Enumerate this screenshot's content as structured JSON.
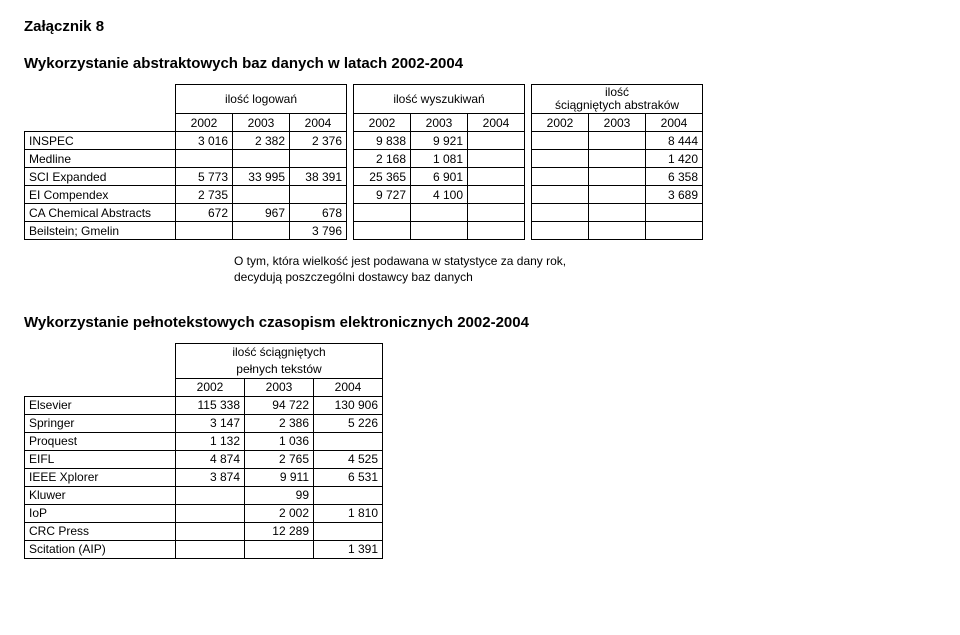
{
  "attachment_label": "Załącznik 8",
  "title1": "Wykorzystanie abstraktowych baz danych w latach 2002-2004",
  "table1": {
    "group_labels": [
      "ilość logowań",
      "ilość wyszukiwań",
      "ilość\nściągniętych abstraków"
    ],
    "year_labels": [
      "2002",
      "2003",
      "2004",
      "2002",
      "2003",
      "2004",
      "2002",
      "2003",
      "2004"
    ],
    "rows": [
      {
        "label": "INSPEC",
        "cells": [
          "3 016",
          "2 382",
          "2 376",
          "9 838",
          "9 921",
          "",
          "",
          "",
          "8 444"
        ]
      },
      {
        "label": "Medline",
        "cells": [
          "",
          "",
          "",
          "2 168",
          "1 081",
          "",
          "",
          "",
          "1 420"
        ]
      },
      {
        "label": "SCI Expanded",
        "cells": [
          "5 773",
          "33 995",
          "38 391",
          "25 365",
          "6 901",
          "",
          "",
          "",
          "6 358"
        ]
      },
      {
        "label": "EI Compendex",
        "cells": [
          "2 735",
          "",
          "",
          "9 727",
          "4 100",
          "",
          "",
          "",
          "3 689"
        ]
      },
      {
        "label": "CA Chemical Abstracts",
        "cells": [
          "672",
          "967",
          "678",
          "",
          "",
          "",
          "",
          "",
          ""
        ]
      },
      {
        "label": "Beilstein; Gmelin",
        "cells": [
          "",
          "",
          "3 796",
          "",
          "",
          "",
          "",
          "",
          ""
        ]
      }
    ]
  },
  "note_line1": "O tym, która wielkość jest podawana w statystyce za dany rok,",
  "note_line2": "decydują poszczególni dostawcy baz danych",
  "title2": "Wykorzystanie pełnotekstowych czasopism elektronicznych 2002-2004",
  "table2": {
    "header_line1": "ilość ściągniętych",
    "header_line2": "pełnych tekstów",
    "year_labels": [
      "2002",
      "2003",
      "2004"
    ],
    "rows": [
      {
        "label": "Elsevier",
        "cells": [
          "115 338",
          "94 722",
          "130 906"
        ]
      },
      {
        "label": "Springer",
        "cells": [
          "3 147",
          "2 386",
          "5 226"
        ]
      },
      {
        "label": "Proquest",
        "cells": [
          "1 132",
          "1 036",
          ""
        ]
      },
      {
        "label": "EIFL",
        "cells": [
          "4 874",
          "2 765",
          "4 525"
        ]
      },
      {
        "label": "IEEE Xplorer",
        "cells": [
          "3 874",
          "9 911",
          "6 531"
        ]
      },
      {
        "label": "Kluwer",
        "cells": [
          "",
          "99",
          ""
        ]
      },
      {
        "label": "IoP",
        "cells": [
          "",
          "2 002",
          "1 810"
        ]
      },
      {
        "label": "CRC Press",
        "cells": [
          "",
          "12 289",
          ""
        ]
      },
      {
        "label": "Scitation (AIP)",
        "cells": [
          "",
          "",
          "1 391"
        ]
      }
    ]
  }
}
